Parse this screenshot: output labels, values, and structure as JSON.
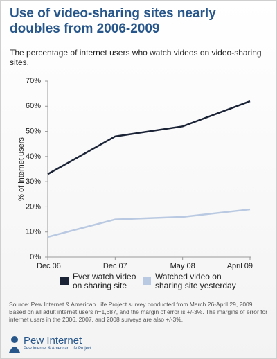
{
  "chart_data": {
    "type": "line",
    "title": "Use of video-sharing sites nearly doubles from 2006-2009",
    "subtitle": "The percentage of internet users who watch videos on video-sharing sites.",
    "y_label": "% of internet users",
    "categories": [
      "Dec 06",
      "Dec 07",
      "May 08",
      "April 09"
    ],
    "series": [
      {
        "name": "Ever watch video on sharing site",
        "color": "#1b2437",
        "values": [
          33,
          48,
          52,
          62
        ]
      },
      {
        "name": "Watched video on sharing site yesterday",
        "color": "#b9c9e1",
        "values": [
          8,
          15,
          16,
          19
        ]
      }
    ],
    "ylim": [
      0,
      70
    ],
    "yticks": [
      {
        "value": 0,
        "label": "0%"
      },
      {
        "value": 10,
        "label": "10%"
      },
      {
        "value": 20,
        "label": "20%"
      },
      {
        "value": 30,
        "label": "30%"
      },
      {
        "value": 40,
        "label": "40%"
      },
      {
        "value": 50,
        "label": "50%"
      },
      {
        "value": 60,
        "label": "60%"
      },
      {
        "value": 70,
        "label": "70%"
      }
    ],
    "grid": false,
    "source": "Source: Pew Internet & American Life Project survey conducted from March 26-April 29, 2009. Based on all adult internet users n=1,687, and the margin of error is +/-3%. The margins of error for internet users in the 2006, 2007, and 2008 surveys are also +/-3%."
  },
  "footer": {
    "logo": "Pew Internet",
    "tagline": "Pew Internet & American Life Project"
  }
}
